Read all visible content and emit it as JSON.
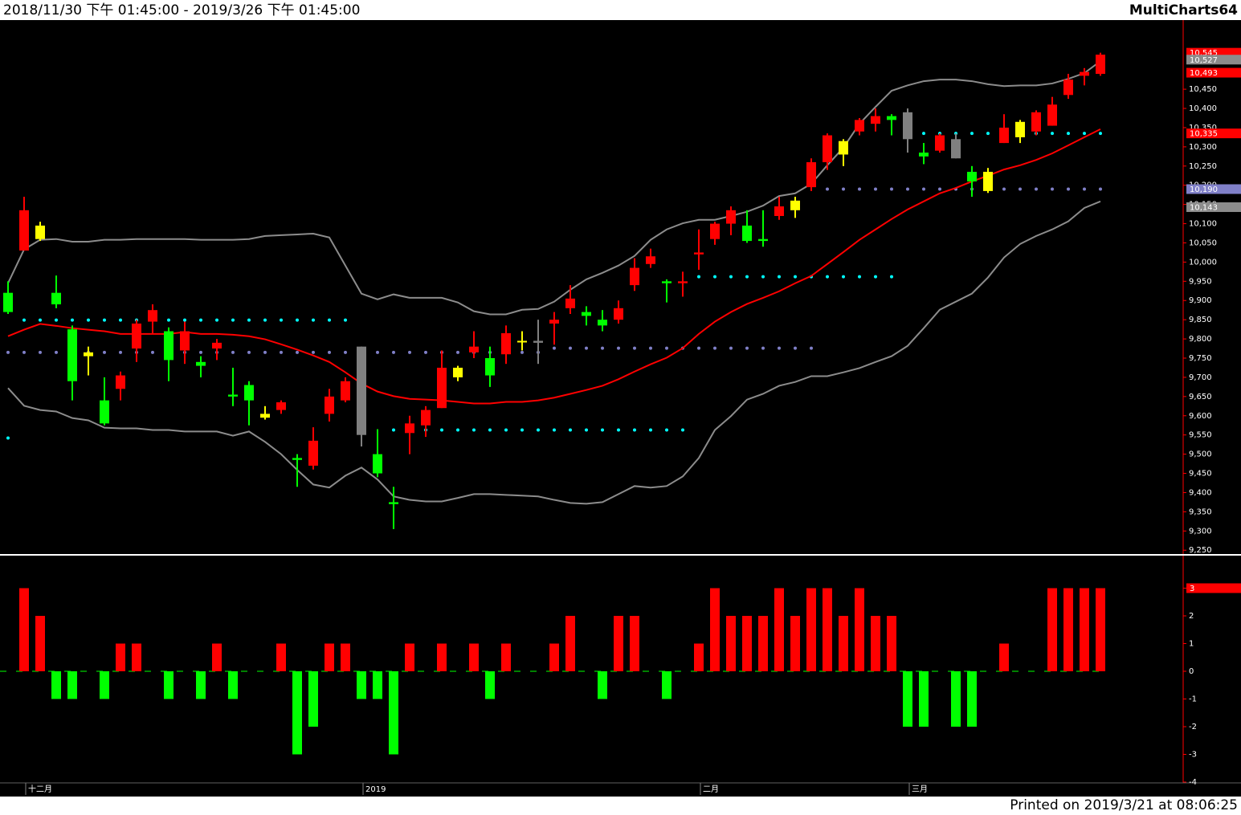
{
  "header": {
    "title": "2018/11/30 下午 01:45:00 - 2019/3/26 下午 01:45:00",
    "brand": "MultiCharts64"
  },
  "footer": "Printed on 2019/3/21 at 08:06:25",
  "chart_data": [
    {
      "type": "candlestick",
      "open": [
        9920,
        10030,
        10060,
        9920,
        9825,
        9755,
        9640,
        9670,
        9775,
        9845,
        9820,
        9770,
        9740,
        9775,
        9655,
        9680,
        9595,
        9615,
        9490,
        9470,
        9605,
        9640,
        9550,
        9500,
        9375,
        9555,
        9575,
        9620,
        9700,
        9765,
        9750,
        9760,
        9795,
        9790,
        9840,
        9880,
        9870,
        9850,
        9850,
        9940,
        9995,
        9950,
        9945,
        10020,
        10060,
        10100,
        10095,
        10060,
        10120,
        10135,
        10195,
        10260,
        10280,
        10340,
        10360,
        10380,
        10320,
        10285,
        10290,
        10270,
        10235,
        10185,
        10310,
        10325,
        10340,
        10355,
        10435,
        10485,
        10490
      ],
      "high": [
        9950,
        10170,
        10105,
        9965,
        9835,
        9780,
        9700,
        9715,
        9850,
        9890,
        9830,
        9845,
        9755,
        9800,
        9725,
        9690,
        9625,
        9640,
        9500,
        9570,
        9670,
        9700,
        9780,
        9565,
        9415,
        9600,
        9625,
        9770,
        9730,
        9820,
        9780,
        9835,
        9820,
        9850,
        9870,
        9940,
        9885,
        9875,
        9900,
        10010,
        10035,
        9955,
        9975,
        10085,
        10105,
        10145,
        10135,
        10135,
        10170,
        10170,
        10270,
        10335,
        10320,
        10375,
        10400,
        10385,
        10400,
        10310,
        10335,
        10335,
        10250,
        10245,
        10385,
        10370,
        10395,
        10430,
        10490,
        10505,
        10545
      ],
      "low": [
        9865,
        10030,
        10055,
        9880,
        9640,
        9705,
        9575,
        9640,
        9740,
        9815,
        9690,
        9735,
        9700,
        9745,
        9625,
        9575,
        9590,
        9605,
        9415,
        9460,
        9585,
        9635,
        9520,
        9440,
        9305,
        9500,
        9545,
        9620,
        9690,
        9750,
        9675,
        9735,
        9770,
        9735,
        9785,
        9865,
        9835,
        9820,
        9840,
        9925,
        9985,
        9895,
        9910,
        9980,
        10045,
        10070,
        10050,
        10040,
        10110,
        10115,
        10185,
        10240,
        10250,
        10330,
        10340,
        10330,
        10285,
        10255,
        10285,
        10270,
        10170,
        10180,
        10310,
        10310,
        10330,
        10355,
        10425,
        10460,
        10485
      ],
      "close": [
        9870,
        10135,
        10095,
        9890,
        9690,
        9765,
        9580,
        9705,
        9840,
        9875,
        9745,
        9820,
        9730,
        9790,
        9650,
        9640,
        9605,
        9635,
        9485,
        9535,
        9650,
        9690,
        9780,
        9450,
        9370,
        9580,
        9615,
        9725,
        9725,
        9780,
        9705,
        9815,
        9795,
        9795,
        9850,
        9905,
        9860,
        9835,
        9880,
        9985,
        10015,
        9945,
        9950,
        10025,
        10100,
        10135,
        10055,
        10055,
        10145,
        10160,
        10260,
        10330,
        10315,
        10370,
        10380,
        10370,
        10390,
        10275,
        10330,
        10320,
        10210,
        10235,
        10350,
        10365,
        10390,
        10410,
        10475,
        10495,
        10540
      ],
      "colors": [
        "#00ff00",
        "#ff0000",
        "#ffff00",
        "#00ff00",
        "#00ff00",
        "#ffff00",
        "#00ff00",
        "#ff0000",
        "#ff0000",
        "#ff0000",
        "#00ff00",
        "#ff0000",
        "#00ff00",
        "#ff0000",
        "#00ff00",
        "#00ff00",
        "#ffff00",
        "#ff0000",
        "#00ff00",
        "#ff0000",
        "#ff0000",
        "#ff0000",
        "#808080",
        "#00ff00",
        "#00ff00",
        "#ff0000",
        "#ff0000",
        "#ff0000",
        "#ffff00",
        "#ff0000",
        "#00ff00",
        "#ff0000",
        "#ffff00",
        "#808080",
        "#ff0000",
        "#ff0000",
        "#00ff00",
        "#00ff00",
        "#ff0000",
        "#ff0000",
        "#ff0000",
        "#00ff00",
        "#ff0000",
        "#ff0000",
        "#ff0000",
        "#ff0000",
        "#00ff00",
        "#00ff00",
        "#ff0000",
        "#ffff00",
        "#ff0000",
        "#ff0000",
        "#ffff00",
        "#ff0000",
        "#ff0000",
        "#00ff00",
        "#808080",
        "#00ff00",
        "#ff0000",
        "#808080",
        "#00ff00",
        "#ffff00",
        "#ff0000",
        "#ffff00",
        "#ff0000",
        "#ff0000",
        "#ff0000",
        "#ff0000",
        "#ff0000"
      ],
      "lines": [
        {
          "color": "#8c8c8c",
          "values": [
            9945,
            10033,
            10058,
            10060,
            10053,
            10053,
            10058,
            10058,
            10060,
            10060,
            10060,
            10060,
            10058,
            10058,
            10058,
            10060,
            10068,
            10070,
            10072,
            10074,
            10064,
            9991,
            9918,
            9903,
            9916,
            9907,
            9907,
            9907,
            9895,
            9872,
            9864,
            9864,
            9876,
            9878,
            9897,
            9928,
            9955,
            9972,
            9991,
            10016,
            10058,
            10085,
            10101,
            10110,
            10110,
            10120,
            10131,
            10147,
            10172,
            10179,
            10204,
            10252,
            10298,
            10360,
            10404,
            10446,
            10460,
            10471,
            10475,
            10475,
            10471,
            10463,
            10458,
            10460,
            10460,
            10465,
            10477,
            10492,
            10523
          ]
        },
        {
          "color": "#ff0000",
          "values": [
            9807,
            9824,
            9839,
            9834,
            9828,
            9824,
            9820,
            9813,
            9813,
            9813,
            9813,
            9818,
            9813,
            9813,
            9811,
            9807,
            9799,
            9786,
            9772,
            9757,
            9740,
            9713,
            9684,
            9663,
            9651,
            9644,
            9642,
            9640,
            9636,
            9632,
            9632,
            9636,
            9636,
            9640,
            9647,
            9657,
            9667,
            9678,
            9695,
            9715,
            9734,
            9751,
            9776,
            9813,
            9845,
            9870,
            9891,
            9907,
            9924,
            9945,
            9964,
            9995,
            10026,
            10058,
            10085,
            10112,
            10137,
            10158,
            10179,
            10193,
            10210,
            10225,
            10241,
            10252,
            10266,
            10283,
            10304,
            10325,
            10346
          ]
        },
        {
          "color": "#8c8c8c",
          "values": [
            9672,
            9626,
            9615,
            9611,
            9594,
            9588,
            9569,
            9567,
            9567,
            9563,
            9563,
            9559,
            9559,
            9559,
            9548,
            9559,
            9532,
            9500,
            9459,
            9421,
            9413,
            9444,
            9465,
            9434,
            9390,
            9381,
            9377,
            9377,
            9386,
            9396,
            9396,
            9394,
            9392,
            9390,
            9381,
            9373,
            9371,
            9375,
            9396,
            9417,
            9413,
            9417,
            9442,
            9490,
            9563,
            9599,
            9642,
            9657,
            9678,
            9688,
            9703,
            9703,
            9713,
            9724,
            9740,
            9755,
            9782,
            9828,
            9876,
            9897,
            9918,
            9960,
            10012,
            10047,
            10068,
            10085,
            10106,
            10141,
            10158
          ]
        }
      ],
      "levels": [
        {
          "value": 9849,
          "color": "#00ffff",
          "from": 1,
          "to": 21
        },
        {
          "value": 9765,
          "color": "#8080c8",
          "from": 0,
          "to": 33
        },
        {
          "value": 9542,
          "color": "#00ffff",
          "from": 0,
          "to": 0
        },
        {
          "value": 9563,
          "color": "#00ffff",
          "from": 24,
          "to": 42
        },
        {
          "value": 9776,
          "color": "#8080c8",
          "from": 34,
          "to": 50
        },
        {
          "value": 9962,
          "color": "#00ffff",
          "from": 43,
          "to": 55
        },
        {
          "value": 10190,
          "color": "#8080c8",
          "from": 51,
          "to": 68
        },
        {
          "value": 10335,
          "color": "#00ffff",
          "from": 56,
          "to": 68
        }
      ],
      "ylim": [
        9240,
        10630
      ],
      "yticks": [
        {
          "value": 9250,
          "label": "9,250"
        },
        {
          "value": 9300,
          "label": "9,300"
        },
        {
          "value": 9350,
          "label": "9,350"
        },
        {
          "value": 9400,
          "label": "9,400"
        },
        {
          "value": 9450,
          "label": "9,450"
        },
        {
          "value": 9500,
          "label": "9,500"
        },
        {
          "value": 9550,
          "label": "9,550"
        },
        {
          "value": 9600,
          "label": "9,600"
        },
        {
          "value": 9650,
          "label": "9,650"
        },
        {
          "value": 9700,
          "label": "9,700"
        },
        {
          "value": 9750,
          "label": "9,750"
        },
        {
          "value": 9800,
          "label": "9,800"
        },
        {
          "value": 9850,
          "label": "9,850"
        },
        {
          "value": 9900,
          "label": "9,900"
        },
        {
          "value": 9950,
          "label": "9,950"
        },
        {
          "value": 10000,
          "label": "10,000"
        },
        {
          "value": 10050,
          "label": "10,050"
        },
        {
          "value": 10100,
          "label": "10,100"
        },
        {
          "value": 10150,
          "label": "10,150"
        },
        {
          "value": 10200,
          "label": "10,200"
        },
        {
          "value": 10250,
          "label": "10,250"
        },
        {
          "value": 10300,
          "label": "10,300"
        },
        {
          "value": 10350,
          "label": "10,350"
        },
        {
          "value": 10400,
          "label": "10,400"
        },
        {
          "value": 10450,
          "label": "10,450"
        }
      ],
      "markers": [
        {
          "value": 10545,
          "label": "10,545",
          "color": "#ff0000"
        },
        {
          "value": 10527,
          "label": "10,527",
          "color": "#8c8c8c"
        },
        {
          "value": 10493,
          "label": "10,493",
          "color": "#ff0000"
        },
        {
          "value": 10335,
          "label": "10,335",
          "color": "#ff0000"
        },
        {
          "value": 10190,
          "label": "10,190",
          "color": "#8080c8"
        },
        {
          "value": 10143,
          "label": "10,143",
          "color": "#8c8c8c"
        }
      ]
    },
    {
      "type": "bar",
      "categories": [
        null,
        "十二月",
        null,
        null,
        null,
        null,
        null,
        null,
        null,
        null,
        null,
        null,
        null,
        null,
        null,
        null,
        null,
        null,
        null,
        null,
        null,
        null,
        "2019",
        null,
        null,
        null,
        null,
        null,
        null,
        null,
        null,
        null,
        null,
        null,
        null,
        null,
        null,
        null,
        null,
        null,
        null,
        null,
        null,
        "二月",
        null,
        null,
        null,
        null,
        null,
        null,
        null,
        null,
        null,
        null,
        null,
        null,
        "三月",
        null,
        null,
        null,
        null,
        null,
        null,
        null,
        null,
        null,
        null,
        null,
        null
      ],
      "values": [
        0,
        3,
        2,
        -1,
        -1,
        0,
        -1,
        1,
        1,
        0,
        -1,
        0,
        -1,
        1,
        -1,
        0,
        0,
        1,
        -3,
        -2,
        1,
        1,
        -1,
        -1,
        -3,
        1,
        0,
        1,
        0,
        1,
        -1,
        1,
        0,
        0,
        1,
        2,
        0,
        -1,
        2,
        2,
        0,
        -1,
        0,
        1,
        3,
        2,
        2,
        2,
        3,
        2,
        3,
        3,
        2,
        3,
        2,
        2,
        -2,
        -2,
        0,
        -2,
        -2,
        0,
        1,
        0,
        0,
        3,
        3,
        3,
        3
      ],
      "up_color": "#ff0000",
      "down_color": "#00ff00",
      "ylim": [
        -4,
        4
      ],
      "yticks": [
        3,
        2,
        1,
        0,
        -1,
        -2,
        -3,
        -4
      ],
      "markers": [
        {
          "value": 3,
          "color": "#ff0000"
        }
      ]
    }
  ]
}
